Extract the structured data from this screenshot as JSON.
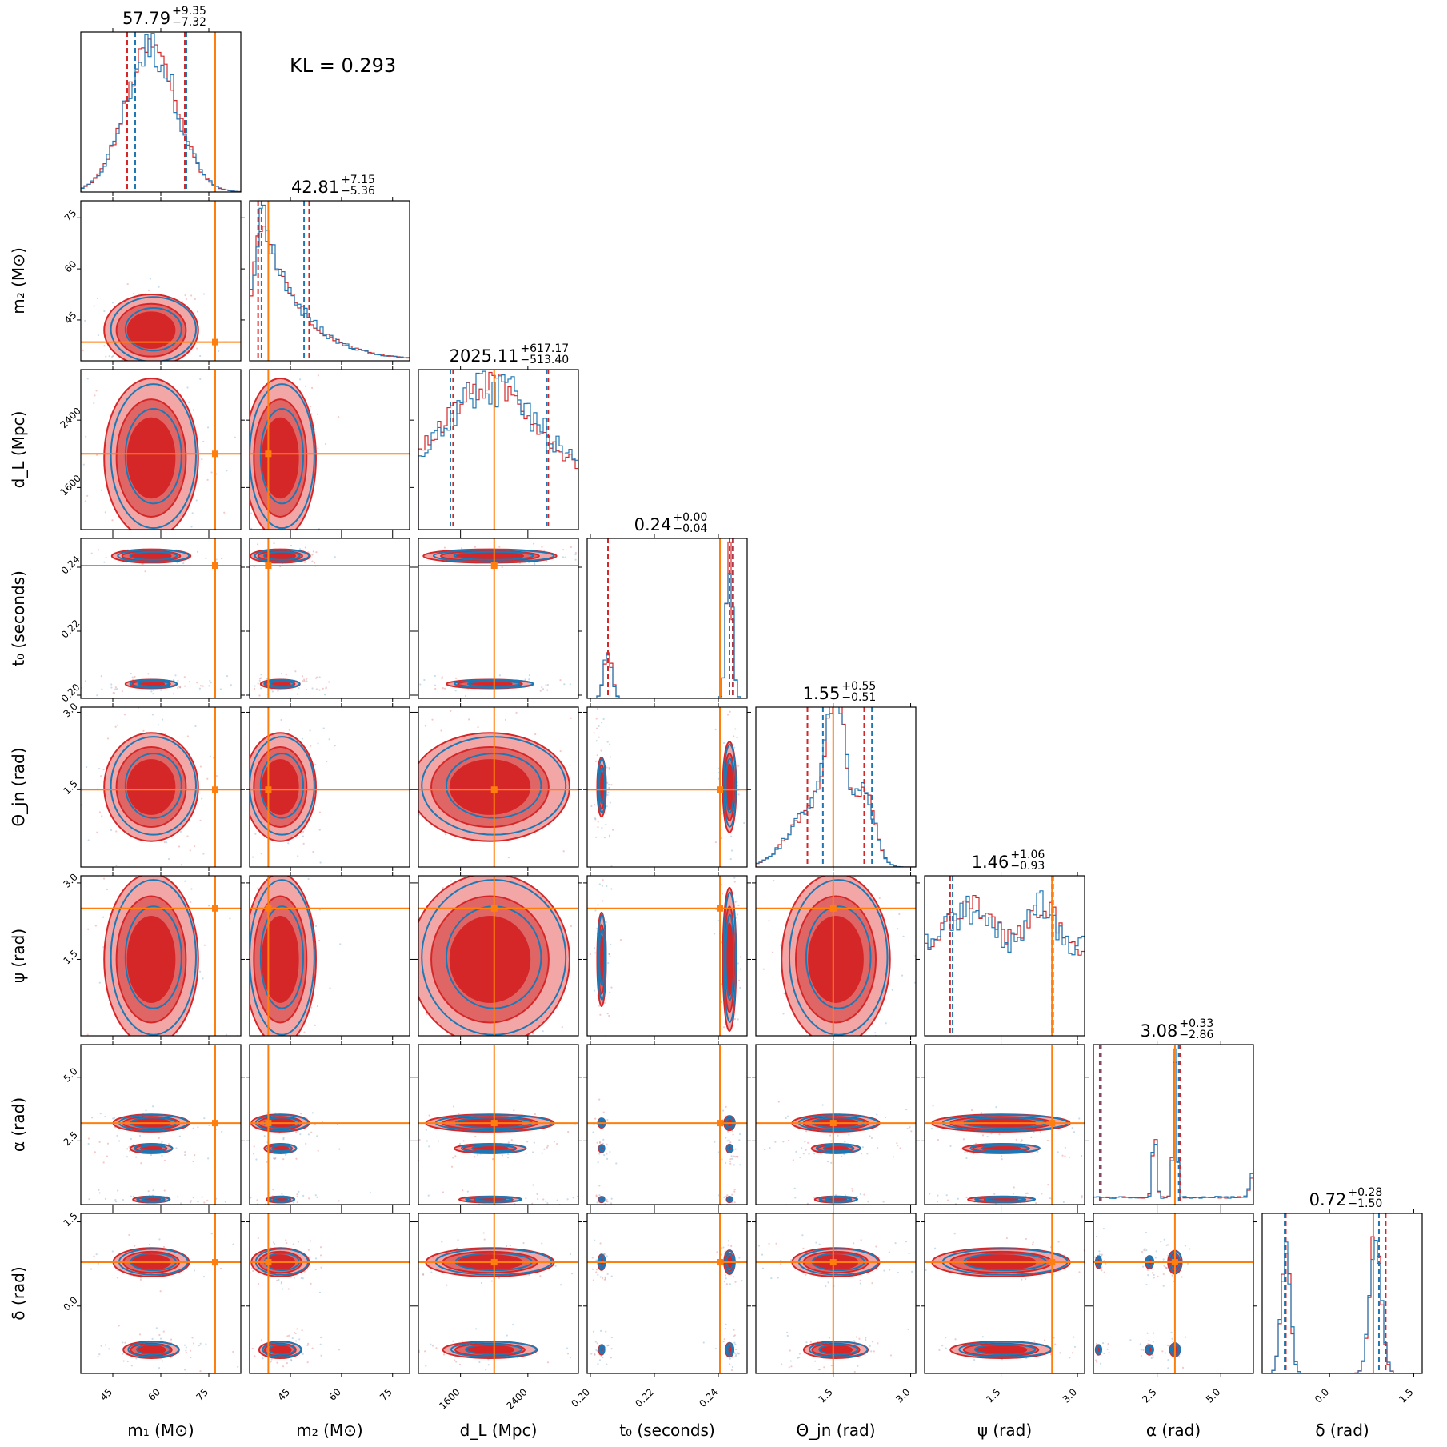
{
  "figure": {
    "kl_text": "KL = 0.293"
  },
  "colors": {
    "red": "#d62728",
    "red_light": "#f2a6a6",
    "red_mid": "#e06666",
    "blue": "#1f77b4",
    "truth": "#ff7f0e"
  },
  "chart_data": {
    "type": "corner",
    "params": [
      {
        "label": "m₁ (M⊙)",
        "range": [
          35,
          85
        ],
        "ticks": [
          45,
          60,
          75
        ],
        "tick_labels": [
          "45",
          "60",
          "75"
        ],
        "truth": 77,
        "title": {
          "median": "57.79",
          "plus": "+9.35",
          "minus": "−7.32"
        },
        "q_red": [
          49.5,
          67.5
        ],
        "q_blue": [
          52,
          68
        ]
      },
      {
        "label": "m₂ (M⊙)",
        "range": [
          33,
          80
        ],
        "ticks": [
          45,
          60,
          75
        ],
        "tick_labels": [
          "45",
          "60",
          "75"
        ],
        "truth": 38.5,
        "title": {
          "median": "42.81",
          "plus": "+7.15",
          "minus": "−5.36"
        },
        "q_red": [
          35.5,
          50.5
        ],
        "q_blue": [
          36.5,
          49
        ]
      },
      {
        "label": "d_L (Mpc)",
        "range": [
          1100,
          3000
        ],
        "ticks": [
          1600,
          2400
        ],
        "tick_labels": [
          "1600",
          "2400"
        ],
        "truth": 2000,
        "title": {
          "median": "2025.11",
          "plus": "+617.17",
          "minus": "−513.40"
        },
        "q_red": [
          1512,
          2642
        ],
        "q_blue": [
          1480,
          2620
        ]
      },
      {
        "label": "t₀ (seconds)",
        "range": [
          0.199,
          0.249
        ],
        "ticks": [
          0.2,
          0.22,
          0.24
        ],
        "tick_labels": [
          "0.20",
          "0.22",
          "0.24"
        ],
        "truth": 0.2405,
        "title": {
          "median": "0.24",
          "plus": "+0.00",
          "minus": "−0.04"
        },
        "q_red": [
          0.2055,
          0.2445
        ],
        "q_blue": [
          0.2435,
          0.2447
        ]
      },
      {
        "label": "Θ_jn (rad)",
        "range": [
          0,
          3.1
        ],
        "ticks": [
          1.5,
          3.0
        ],
        "tick_labels": [
          "1.5",
          "3.0"
        ],
        "truth": 1.5,
        "title": {
          "median": "1.55",
          "plus": "+0.55",
          "minus": "−0.51"
        },
        "q_red": [
          1.0,
          2.1
        ],
        "q_blue": [
          1.3,
          2.25
        ]
      },
      {
        "label": "ψ (rad)",
        "range": [
          0,
          3.14
        ],
        "ticks": [
          1.5,
          3.0
        ],
        "tick_labels": [
          "1.5",
          "3.0"
        ],
        "truth": 2.5,
        "title": {
          "median": "1.46",
          "plus": "+1.06",
          "minus": "−0.93"
        },
        "q_red": [
          0.5,
          2.5
        ],
        "q_blue": [
          0.55,
          2.52
        ]
      },
      {
        "label": "α (rad)",
        "range": [
          0,
          6.28
        ],
        "ticks": [
          2.5,
          5.0
        ],
        "tick_labels": [
          "2.5",
          "5.0"
        ],
        "truth": 3.2,
        "title": {
          "median": "3.08",
          "plus": "+0.33",
          "minus": "−2.86"
        },
        "q_red": [
          0.25,
          3.4
        ],
        "q_blue": [
          0.3,
          3.35
        ]
      },
      {
        "label": "δ (rad)",
        "range": [
          -1.2,
          1.65
        ],
        "ticks": [
          0.0,
          1.5
        ],
        "tick_labels": [
          "0.0",
          "1.5"
        ],
        "truth": 0.78,
        "title": {
          "median": "0.72",
          "plus": "+0.28",
          "minus": "−1.50"
        },
        "q_red": [
          -0.78,
          1.0
        ],
        "q_blue": [
          -0.8,
          0.88
        ]
      }
    ]
  }
}
